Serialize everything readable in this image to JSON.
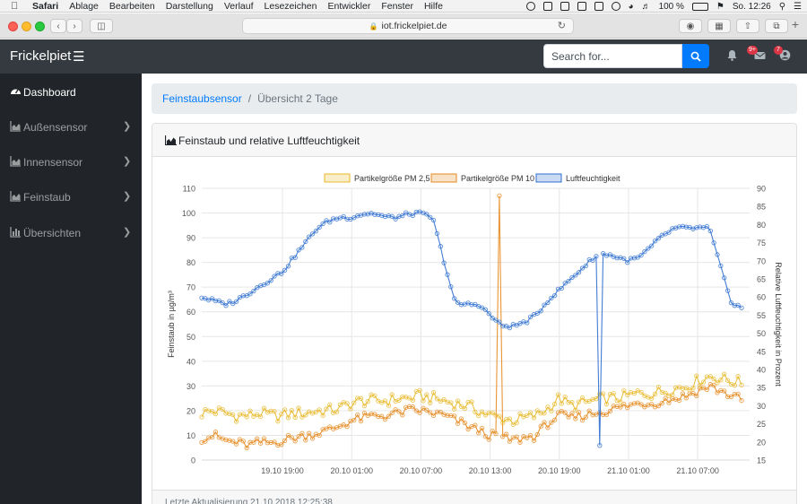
{
  "menubar": {
    "app": "Safari",
    "items": [
      "Ablage",
      "Bearbeiten",
      "Darstellung",
      "Verlauf",
      "Lesezeichen",
      "Entwickler",
      "Fenster",
      "Hilfe"
    ],
    "battery": "100 %",
    "clock": "So. 12:26"
  },
  "browser": {
    "url": "iot.frickelpiet.de"
  },
  "navbar": {
    "brand": "Frickelpiet",
    "search_placeholder": "Search for...",
    "messages_badge": "9+",
    "user_badge": "7"
  },
  "sidebar": {
    "items": [
      {
        "label": "Dashboard",
        "icon": "tachometer-icon",
        "active": true
      },
      {
        "label": "Außensensor",
        "icon": "area-chart-icon"
      },
      {
        "label": "Innensensor",
        "icon": "area-chart-icon"
      },
      {
        "label": "Feinstaub",
        "icon": "area-chart-icon"
      },
      {
        "label": "Übersichten",
        "icon": "bar-chart-icon"
      }
    ]
  },
  "breadcrumb": {
    "parent": "Feinstaubsensor",
    "current": "Übersicht 2 Tage"
  },
  "card": {
    "title": "Feinstaub und relative Luftfeuchtigkeit",
    "footer": "Letzte Aktualisierung 21.10.2018 12:25:38"
  },
  "colors": {
    "pm25": "#e8b92a",
    "pm10": "#e58a1f",
    "humidity": "#2f6fcf",
    "primary": "#007bff",
    "navbar": "#343a40",
    "sidebar": "#212529"
  },
  "chart_data": {
    "type": "line",
    "title": "",
    "legend_position": "top",
    "grid": true,
    "x_tick_labels": [
      "19.10 19:00",
      "20.10 01:00",
      "20.10 07:00",
      "20.10 13:00",
      "20.10 19:00",
      "21.10 01:00",
      "21.10 07:00"
    ],
    "x_range_hours": [
      -7,
      40.5
    ],
    "y_left": {
      "label": "Feinstaub in µg/m³",
      "min": 0,
      "max": 110,
      "ticks": [
        0,
        10,
        20,
        30,
        40,
        50,
        60,
        70,
        80,
        90,
        100,
        110
      ]
    },
    "y_right": {
      "label": "Relative Luftfeuchtigkeit in Prozent",
      "min": 15,
      "max": 90,
      "ticks": [
        15,
        20,
        25,
        30,
        35,
        40,
        45,
        50,
        55,
        60,
        65,
        70,
        75,
        80,
        85,
        90
      ]
    },
    "series": [
      {
        "name": "Partikelgröße PM 2,5",
        "axis": "left",
        "x": [
          -7,
          -6,
          -5,
          -4,
          -3,
          -2,
          -1,
          0,
          1,
          2,
          3,
          4,
          5,
          6,
          7,
          8,
          9,
          10,
          11,
          12,
          13,
          14,
          15,
          16,
          17,
          18,
          19,
          20,
          21,
          22,
          23,
          24,
          25,
          26,
          27,
          28,
          29,
          30,
          31,
          32,
          33,
          34,
          35,
          36,
          37,
          38,
          39,
          40
        ],
        "values": [
          19,
          20,
          19,
          18,
          18,
          19,
          18,
          18,
          19,
          19,
          20,
          20,
          21,
          23,
          24,
          24,
          24,
          25,
          25,
          26,
          25,
          24,
          23,
          22,
          20,
          18,
          17,
          16,
          17,
          18,
          21,
          25,
          22,
          23,
          24,
          25,
          25,
          26,
          27,
          27,
          28,
          29,
          30,
          32,
          34,
          33,
          32,
          31
        ]
      },
      {
        "name": "Partikelgröße PM 10",
        "axis": "left",
        "x": [
          -7,
          -6,
          -5,
          -4,
          -3,
          -2,
          -1,
          0,
          1,
          2,
          3,
          4,
          5,
          6,
          7,
          8,
          9,
          10,
          11,
          12,
          13,
          14,
          15,
          16,
          17,
          18,
          19,
          20,
          21,
          22,
          23,
          24,
          25,
          26,
          27,
          28,
          29,
          30,
          31,
          32,
          33,
          34,
          35,
          36,
          37,
          38,
          39,
          40
        ],
        "values": [
          9,
          10,
          8,
          7,
          6,
          7,
          7,
          8,
          9,
          10,
          11,
          12,
          14,
          16,
          17,
          18,
          18,
          19,
          20,
          20,
          19,
          18,
          16,
          14,
          12,
          10,
          9,
          8,
          9,
          10,
          15,
          18,
          17,
          18,
          19,
          20,
          21,
          22,
          23,
          23,
          24,
          25,
          26,
          28,
          30,
          28,
          26,
          24
        ]
      },
      {
        "name": "Luftfeuchtigkeit",
        "axis": "right",
        "x": [
          -7,
          -6,
          -5,
          -4,
          -3,
          -2,
          -1,
          0,
          1,
          2,
          3,
          4,
          5,
          6,
          7,
          8,
          9,
          10,
          11,
          12,
          13,
          14,
          15,
          16,
          17,
          18,
          19,
          20,
          21,
          22,
          23,
          24,
          25,
          26,
          27,
          28,
          29,
          30,
          31,
          32,
          33,
          34,
          35,
          36,
          37,
          38,
          39,
          40
        ],
        "values": [
          60,
          59,
          58,
          59,
          61,
          63,
          65,
          67,
          71,
          75,
          79,
          81,
          82,
          82,
          83,
          83,
          82,
          82,
          83,
          83,
          82,
          70,
          58,
          58,
          58,
          55,
          52,
          52,
          53,
          55,
          59,
          62,
          65,
          68,
          71,
          72,
          71,
          70,
          71,
          74,
          77,
          79,
          79,
          79,
          79,
          68,
          58,
          57
        ]
      }
    ],
    "annotations": [
      {
        "series": "Partikelgröße PM 10",
        "peak_x": 18.8,
        "peak_y": 107
      },
      {
        "series": "Luftfeuchtigkeit",
        "dip_x": 27.5,
        "dip_y": 19
      }
    ]
  }
}
